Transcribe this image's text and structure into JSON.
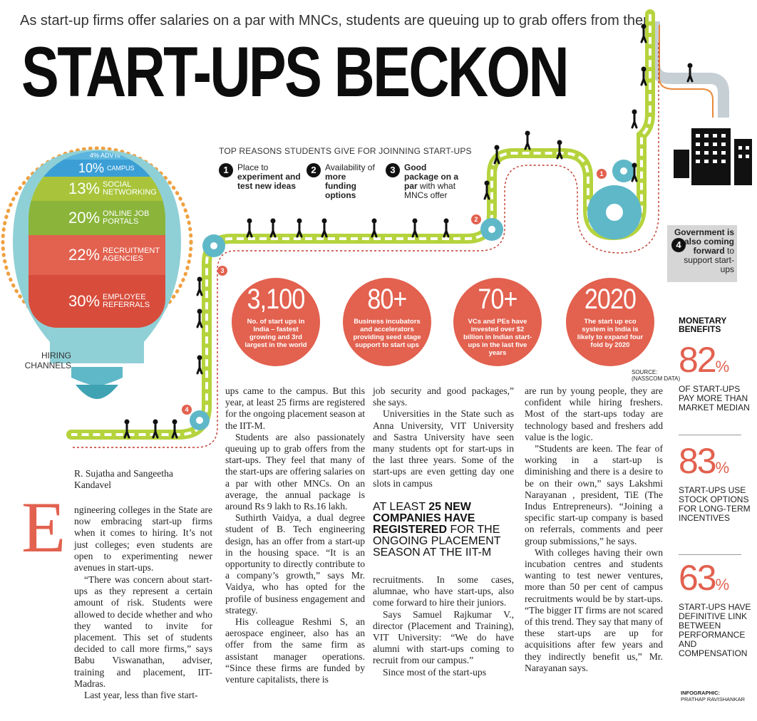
{
  "subtitle": "As start-up firms offer salaries on a par with MNCs, students are queuing up to grab offers from them",
  "headline": "START-UPS BECKON",
  "reasons": {
    "title": "TOP REASONS STUDENTS GIVE FOR JOINNING START-UPS",
    "items": [
      {
        "num": "1",
        "pre": "Place to ",
        "bold": "experiment and test new ideas",
        "post": ""
      },
      {
        "num": "2",
        "pre": "Availability of ",
        "bold": "more funding options",
        "post": ""
      },
      {
        "num": "3",
        "pre": "",
        "bold": "Good package on a par",
        "post": " with what MNCs offer"
      }
    ]
  },
  "gov_note": {
    "num": "4",
    "bold": "Government is also coming forward",
    "post": " to support start-ups"
  },
  "path_markers": [
    "1",
    "2",
    "3",
    "4"
  ],
  "bulb": {
    "segments": [
      {
        "pct": "4%",
        "label": "ADVTs",
        "color": "#5bb5de"
      },
      {
        "pct": "10%",
        "label": "CAMPUS",
        "color": "#3b9fd6"
      },
      {
        "pct": "13%",
        "label": "SOCIAL NETWORKING",
        "color": "#a9c43a"
      },
      {
        "pct": "20%",
        "label": "ONLINE JOB PORTALS",
        "color": "#8ab53a"
      },
      {
        "pct": "22%",
        "label": "RECRUITMENT AGENCIES",
        "color": "#e2614f"
      },
      {
        "pct": "30%",
        "label": "EMPLOYEE REFERRALS",
        "color": "#d84c3b"
      }
    ],
    "caption": "HIRING CHANNELS",
    "outline_color": "#8fd0d6",
    "dot_color": "#f0a040"
  },
  "stats": [
    {
      "big": "3,100",
      "text": "No. of start ups in India – fastest growing and 3rd largest in the world"
    },
    {
      "big": "80+",
      "text": "Business incubators and accelerators providing seed stage support to start ups"
    },
    {
      "big": "70+",
      "text": "VCs and PEs have invested over $2 billion in Indian start-ups in the last five years"
    },
    {
      "big": "2020",
      "text": "The start up eco system in India is likely to expand four fold by 2020"
    }
  ],
  "source": "SOURCE: (NASSCOM DATA)",
  "byline": "R. Sujatha and Sangeetha Kandavel",
  "dropcap": "E",
  "col1": [
    "ngineering colleges in the State are now embracing start-up firms when it comes to hiring. It’s not just colleges; even students are open to experimenting newer avenues in start-ups.",
    "“There was concern about start-ups as they represent a certain amount of risk. Students were allowed to decide whether and who they wanted to invite for placement. This set of students decided to call more firms,” says Babu Viswanathan, adviser, training and placement, IIT- Madras.",
    "Last year, less than five start-"
  ],
  "col2": [
    "ups came to the campus. But this year, at least 25 firms are registered for the ongoing placement season at the IIT-M.",
    "Students are also passionately queuing up to grab offers from the start-ups. They feel that many of the start-ups are offering salaries on a par with other MNCs. On an average, the annual package is around Rs 9 lakh to Rs.16 lakh.",
    "Suthirth Vaidya, a dual degree student of B. Tech engineering design, has an offer from a start-up in the housing space. “It is an opportunity to directly contribute to a company’s growth,” says Mr. Vaidya, who has opted for the profile of business engagement and strategy.",
    "His colleague Reshmi S, an aerospace engineer, also has an offer from the same firm as assistant manager operations. “Since these firms are funded by venture capitalists, there is"
  ],
  "col3_top": [
    "job security and good packages,” she says.",
    "Universities in the State such as Anna University, VIT University and Sastra University have seen many students opt for start-ups in the last three years. Some of the start-ups are even getting day one slots in campus"
  ],
  "pullquote": {
    "pre": "AT LEAST ",
    "bold": "25 NEW COMPANIES HAVE REGISTERED",
    "post": " FOR THE ONGOING PLACEMENT SEASON AT THE IIT-M"
  },
  "col3_bottom": [
    "recruitments. In some cases, alumnae, who have start-ups, also come forward to hire their juniors.",
    "Says Samuel Rajkumar V., director (Placement and Training), VIT University: “We do have alumni with start-ups coming to recruit from our campus.”",
    "Since most of the start-ups"
  ],
  "col4": [
    "are run by young people, they are confident while hiring freshers. Most of the start-ups today are technology based and freshers add value is the logic.",
    "”Students are keen. The fear of working in a start-up is diminishing and there is a desire to be on their own,” says Lakshmi Narayanan , president, TiE (The Indus Entrepreneurs). “Joining a specific start-up company is based on referrals, comments and peer group submissions,” he says.",
    "With colleges having their own incubation centres and students wanting to test newer ventures, more than 50 per cent of campus recruitments would be by start-ups. “The bigger IT firms are not scared of this trend. They say that many of these start-ups are up for acquisitions after few years and they indirectly benefit us,” Mr. Narayanan says."
  ],
  "monetary": {
    "title": "MONETARY BENEFITS",
    "items": [
      {
        "num": "82",
        "unit": "%",
        "text": "OF START-UPS PAY MORE THAN MARKET MEDIAN"
      },
      {
        "num": "83",
        "unit": "%",
        "text": "START-UPS USE STOCK OPTIONS FOR LONG-TERM INCENTIVES"
      },
      {
        "num": "63",
        "unit": "%",
        "text": "START-UPS HAVE DEFINITIVE LINK BETWEEN PERFORMANCE AND COMPENSATION"
      }
    ]
  },
  "credit": {
    "label": "INFOGRAPHIC:",
    "name": "PRATHAP RAVISHANKAR"
  },
  "colors": {
    "accent": "#e2614f",
    "path_green": "#b5d33d",
    "gear": "#5fb8c8",
    "path_red": "#c0392b"
  }
}
